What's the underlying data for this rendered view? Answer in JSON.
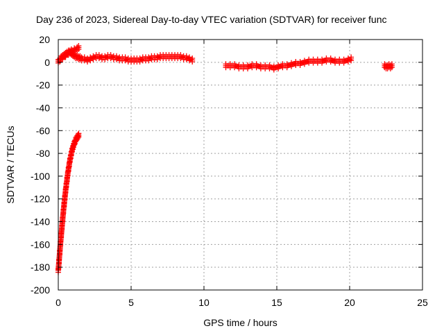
{
  "chart_data": {
    "type": "scatter",
    "title": "Day 236 of 2023, Sidereal Day-to-day VTEC variation (SDTVAR) for receiver func",
    "xlabel": "GPS time / hours",
    "ylabel": "SDTVAR / TECUs",
    "xlim": [
      0,
      25
    ],
    "ylim": [
      -200,
      20
    ],
    "xticks": [
      0,
      5,
      10,
      15,
      20,
      25
    ],
    "yticks": [
      20,
      0,
      -20,
      -40,
      -60,
      -80,
      -100,
      -120,
      -140,
      -160,
      -180,
      -200
    ],
    "grid": true,
    "marker": "plus",
    "series_color": "#ff0000",
    "series": [
      {
        "segments": [
          {
            "x": [
              0.0,
              0.05,
              0.1,
              0.15,
              0.2,
              0.25,
              0.3,
              0.35,
              0.4,
              0.45,
              0.5,
              0.55,
              0.6,
              0.65,
              0.7,
              0.75,
              0.8,
              0.85,
              0.9,
              0.95,
              1.0,
              1.05,
              1.1,
              1.15,
              1.2,
              1.25,
              1.3,
              1.35,
              1.4
            ],
            "y": [
              -183,
              -175,
              -167,
              -159,
              -152,
              -145,
              -138,
              -131,
              -125,
              -119,
              -113,
              -108,
              -103,
              -98,
              -94,
              -90,
              -86,
              -83,
              -80,
              -77,
              -75,
              -73,
              -71,
              -70,
              -68,
              -67,
              -66,
              -65,
              -64
            ]
          },
          {
            "x": [
              0.0,
              0.1,
              0.2,
              0.3,
              0.4,
              0.5,
              0.6,
              0.7,
              0.8,
              0.9,
              1.0,
              1.1,
              1.2,
              1.3,
              1.4,
              1.5,
              1.6,
              1.8,
              2.0,
              2.2,
              2.4,
              2.6,
              2.8,
              3.0,
              3.2,
              3.4,
              3.6,
              3.8,
              4.0,
              4.2,
              4.4,
              4.6,
              4.8,
              5.0,
              5.2,
              5.4,
              5.6,
              5.8,
              6.0,
              6.2,
              6.4,
              6.6,
              6.8,
              7.0,
              7.2,
              7.4,
              7.6,
              7.8,
              8.0,
              8.2,
              8.4,
              8.6,
              8.8,
              9.0,
              9.2
            ],
            "y": [
              1,
              2,
              4,
              5,
              6,
              7,
              8,
              9,
              9,
              8,
              7,
              6,
              5,
              5,
              4,
              4,
              3,
              3,
              2,
              3,
              4,
              5,
              5,
              4,
              4,
              5,
              5,
              4,
              4,
              3,
              3,
              3,
              2,
              2,
              2,
              2,
              2,
              3,
              3,
              3,
              4,
              4,
              4,
              5,
              5,
              5,
              5,
              5,
              5,
              5,
              5,
              4,
              4,
              3,
              2
            ]
          },
          {
            "x": [
              0.3,
              0.5,
              0.7,
              0.9,
              1.1,
              1.3,
              1.4
            ],
            "y": [
              4,
              6,
              8,
              10,
              11,
              12,
              13
            ]
          },
          {
            "x": [
              11.5,
              11.8,
              12.1,
              12.4,
              12.7,
              13.0,
              13.3,
              13.6,
              13.9,
              14.2,
              14.5,
              14.8,
              15.1,
              15.4,
              15.7,
              16.0,
              16.3,
              16.6,
              16.9,
              17.2,
              17.5,
              17.8,
              18.1,
              18.4,
              18.7,
              19.0,
              19.3,
              19.6,
              19.9,
              20.1
            ],
            "y": [
              -3,
              -3,
              -3,
              -4,
              -4,
              -4,
              -3,
              -3,
              -4,
              -4,
              -4,
              -5,
              -4,
              -3,
              -3,
              -2,
              -1,
              -1,
              0,
              1,
              1,
              1,
              1,
              2,
              2,
              1,
              1,
              1,
              2,
              3
            ]
          },
          {
            "x": [
              22.4,
              22.5,
              22.6,
              22.7,
              22.8,
              22.9
            ],
            "y": [
              -3,
              -4,
              -4,
              -3,
              -4,
              -3
            ]
          }
        ]
      }
    ]
  }
}
